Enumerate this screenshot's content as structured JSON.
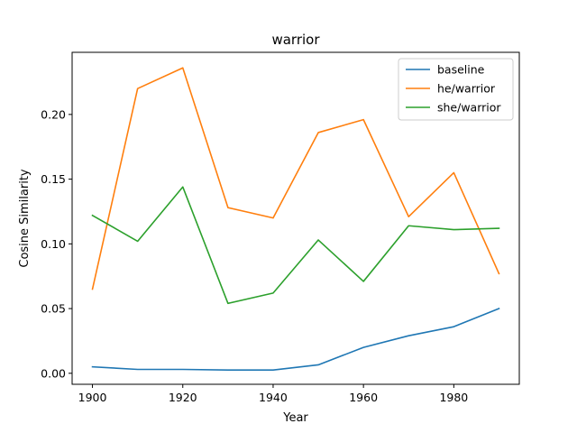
{
  "chart_data": {
    "type": "line",
    "title": "warrior",
    "xlabel": "Year",
    "ylabel": "Cosine Similarity",
    "x": [
      1900,
      1910,
      1920,
      1930,
      1940,
      1950,
      1960,
      1970,
      1980,
      1990
    ],
    "xlim": [
      1895.5,
      1994.5
    ],
    "ylim": [
      -0.0085,
      0.248
    ],
    "xticks": [
      1900,
      1920,
      1940,
      1960,
      1980
    ],
    "xtick_labels": [
      "1900",
      "1920",
      "1940",
      "1960",
      "1980"
    ],
    "yticks": [
      0.0,
      0.05,
      0.1,
      0.15,
      0.2
    ],
    "ytick_labels": [
      "0.00",
      "0.05",
      "0.10",
      "0.15",
      "0.20"
    ],
    "grid": false,
    "legend_position": "top-right",
    "series": [
      {
        "name": "baseline",
        "color": "#1f77b4",
        "values": [
          0.005,
          0.003,
          0.003,
          0.0025,
          0.0025,
          0.0065,
          0.02,
          0.029,
          0.036,
          0.05
        ]
      },
      {
        "name": "he/warrior",
        "color": "#ff7f0e",
        "values": [
          0.065,
          0.22,
          0.236,
          0.128,
          0.12,
          0.186,
          0.196,
          0.121,
          0.155,
          0.077
        ]
      },
      {
        "name": "she/warrior",
        "color": "#2ca02c",
        "values": [
          0.122,
          0.102,
          0.144,
          0.054,
          0.062,
          0.103,
          0.071,
          0.114,
          0.111,
          0.112
        ]
      }
    ]
  }
}
